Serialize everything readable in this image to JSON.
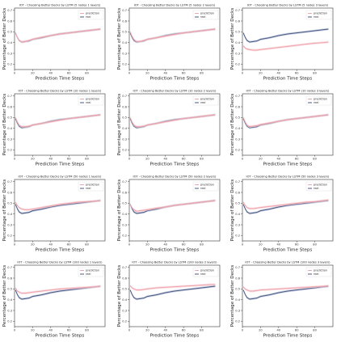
{
  "figure": {
    "x_label": "Prediction Time Steps",
    "y_label": "Percentage of Better Decks",
    "legend_labels": [
      "prediction",
      "real"
    ],
    "colors": {
      "prediction": "#f0a3ad",
      "prediction_band": "#f7c9cf",
      "real": "#4a5a86",
      "real_band": "#a9b2cc"
    }
  },
  "chart_data": [
    {
      "type": "line",
      "title": "IOT - Choosing Better Decks by LSTM (5 nodes 1 layers)",
      "xlim": [
        0,
        100
      ],
      "ylim": [
        0.15,
        0.72
      ],
      "xticks": [
        0,
        20,
        40,
        60,
        80
      ],
      "yticks": [
        0.2,
        0.3,
        0.4,
        0.5,
        0.6,
        0.7
      ],
      "x": [
        1,
        3,
        5,
        8,
        12,
        16,
        20,
        30,
        40,
        50,
        60,
        70,
        80,
        90,
        95
      ],
      "series": [
        {
          "name": "prediction",
          "values": [
            0.49,
            0.45,
            0.42,
            0.405,
            0.41,
            0.42,
            0.43,
            0.45,
            0.465,
            0.48,
            0.49,
            0.5,
            0.51,
            0.52,
            0.525
          ]
        },
        {
          "name": "real",
          "values": [
            0.49,
            0.45,
            0.42,
            0.405,
            0.41,
            0.415,
            0.43,
            0.445,
            0.465,
            0.48,
            0.49,
            0.5,
            0.51,
            0.52,
            0.525
          ]
        }
      ],
      "legend": "top-right"
    },
    {
      "type": "line",
      "title": "IOT - Choosing Better Decks by LSTM (5 nodes 2 layers)",
      "xlim": [
        0,
        100
      ],
      "ylim": [
        0.15,
        0.72
      ],
      "xticks": [
        0,
        20,
        40,
        60,
        80
      ],
      "yticks": [
        0.2,
        0.3,
        0.4,
        0.5,
        0.6,
        0.7
      ],
      "x": [
        1,
        3,
        5,
        8,
        12,
        16,
        20,
        30,
        40,
        50,
        60,
        70,
        80,
        90,
        95
      ],
      "series": [
        {
          "name": "prediction",
          "values": [
            0.5,
            0.46,
            0.43,
            0.41,
            0.41,
            0.42,
            0.43,
            0.445,
            0.46,
            0.475,
            0.49,
            0.5,
            0.51,
            0.52,
            0.525
          ]
        },
        {
          "name": "real",
          "values": [
            0.49,
            0.45,
            0.42,
            0.405,
            0.41,
            0.415,
            0.43,
            0.445,
            0.465,
            0.48,
            0.49,
            0.5,
            0.51,
            0.52,
            0.525
          ]
        }
      ],
      "legend": "top-right"
    },
    {
      "type": "line",
      "title": "IOT - Choosing Better Decks by LSTM (5 nodes 3 layers)",
      "xlim": [
        0,
        100
      ],
      "ylim": [
        0.15,
        0.72
      ],
      "xticks": [
        0,
        20,
        40,
        60,
        80
      ],
      "yticks": [
        0.2,
        0.3,
        0.4,
        0.5,
        0.6,
        0.7
      ],
      "x": [
        1,
        3,
        5,
        8,
        12,
        16,
        20,
        30,
        40,
        50,
        60,
        70,
        80,
        90,
        95
      ],
      "series": [
        {
          "name": "prediction",
          "values": [
            0.37,
            0.35,
            0.34,
            0.335,
            0.33,
            0.33,
            0.335,
            0.345,
            0.355,
            0.365,
            0.375,
            0.385,
            0.395,
            0.4,
            0.405
          ]
        },
        {
          "name": "real",
          "values": [
            0.49,
            0.45,
            0.42,
            0.405,
            0.41,
            0.415,
            0.43,
            0.445,
            0.465,
            0.48,
            0.49,
            0.5,
            0.51,
            0.52,
            0.525
          ]
        }
      ],
      "legend": "top-right"
    },
    {
      "type": "line",
      "title": "IOT - Choosing Better Decks by LSTM (10 nodes 1 layers)",
      "xlim": [
        0,
        100
      ],
      "ylim": [
        0.15,
        0.72
      ],
      "xticks": [
        0,
        20,
        40,
        60,
        80
      ],
      "yticks": [
        0.2,
        0.3,
        0.4,
        0.5,
        0.6,
        0.7
      ],
      "x": [
        1,
        3,
        5,
        8,
        12,
        16,
        20,
        30,
        40,
        50,
        60,
        70,
        80,
        90,
        95
      ],
      "series": [
        {
          "name": "prediction",
          "values": [
            0.5,
            0.46,
            0.43,
            0.415,
            0.415,
            0.42,
            0.43,
            0.445,
            0.46,
            0.475,
            0.49,
            0.5,
            0.51,
            0.52,
            0.525
          ]
        },
        {
          "name": "real",
          "values": [
            0.49,
            0.45,
            0.42,
            0.405,
            0.41,
            0.415,
            0.43,
            0.445,
            0.465,
            0.48,
            0.49,
            0.5,
            0.51,
            0.52,
            0.525
          ]
        }
      ],
      "legend": "top-right"
    },
    {
      "type": "line",
      "title": "IOT - Choosing Better Decks by LSTM (10 nodes 2 layers)",
      "xlim": [
        0,
        100
      ],
      "ylim": [
        0.15,
        0.72
      ],
      "xticks": [
        0,
        20,
        40,
        60,
        80
      ],
      "yticks": [
        0.2,
        0.3,
        0.4,
        0.5,
        0.6,
        0.7
      ],
      "x": [
        1,
        3,
        5,
        8,
        12,
        16,
        20,
        30,
        40,
        50,
        60,
        70,
        80,
        90,
        95
      ],
      "series": [
        {
          "name": "prediction",
          "values": [
            0.5,
            0.46,
            0.43,
            0.415,
            0.415,
            0.42,
            0.43,
            0.445,
            0.46,
            0.475,
            0.49,
            0.5,
            0.51,
            0.52,
            0.525
          ]
        },
        {
          "name": "real",
          "values": [
            0.49,
            0.45,
            0.42,
            0.405,
            0.41,
            0.415,
            0.43,
            0.445,
            0.465,
            0.48,
            0.49,
            0.5,
            0.51,
            0.52,
            0.525
          ]
        }
      ],
      "legend": "top-right"
    },
    {
      "type": "line",
      "title": "IOT - Choosing Better Decks by LSTM (10 nodes 3 layers)",
      "xlim": [
        0,
        100
      ],
      "ylim": [
        0.15,
        0.72
      ],
      "xticks": [
        0,
        20,
        40,
        60,
        80
      ],
      "yticks": [
        0.2,
        0.3,
        0.4,
        0.5,
        0.6,
        0.7
      ],
      "x": [
        1,
        3,
        5,
        8,
        12,
        16,
        20,
        30,
        40,
        50,
        60,
        70,
        80,
        90,
        95
      ],
      "series": [
        {
          "name": "prediction",
          "values": [
            0.5,
            0.46,
            0.43,
            0.415,
            0.42,
            0.425,
            0.435,
            0.45,
            0.465,
            0.48,
            0.49,
            0.5,
            0.51,
            0.52,
            0.525
          ]
        },
        {
          "name": "real",
          "values": [
            0.49,
            0.45,
            0.42,
            0.405,
            0.41,
            0.415,
            0.43,
            0.445,
            0.465,
            0.48,
            0.49,
            0.5,
            0.51,
            0.52,
            0.525
          ]
        }
      ],
      "legend": "top-right"
    },
    {
      "type": "line",
      "title": "IOT - Choosing Better Decks by LSTM (50 nodes 1 layers)",
      "xlim": [
        0,
        100
      ],
      "ylim": [
        0.15,
        0.72
      ],
      "xticks": [
        0,
        20,
        40,
        60,
        80
      ],
      "yticks": [
        0.2,
        0.3,
        0.4,
        0.5,
        0.6,
        0.7
      ],
      "x": [
        1,
        3,
        5,
        8,
        12,
        16,
        20,
        30,
        40,
        50,
        60,
        70,
        80,
        90,
        95
      ],
      "series": [
        {
          "name": "prediction",
          "values": [
            0.51,
            0.48,
            0.46,
            0.445,
            0.44,
            0.44,
            0.445,
            0.46,
            0.475,
            0.49,
            0.5,
            0.51,
            0.515,
            0.52,
            0.525
          ]
        },
        {
          "name": "real",
          "values": [
            0.49,
            0.45,
            0.42,
            0.405,
            0.41,
            0.415,
            0.43,
            0.445,
            0.465,
            0.48,
            0.49,
            0.5,
            0.51,
            0.52,
            0.525
          ]
        }
      ],
      "legend": "top-right"
    },
    {
      "type": "line",
      "title": "IOT - Choosing Better Decks by LSTM (50 nodes 2 layers)",
      "xlim": [
        0,
        100
      ],
      "ylim": [
        0.15,
        0.72
      ],
      "xticks": [
        0,
        20,
        40,
        60,
        80
      ],
      "yticks": [
        0.2,
        0.3,
        0.4,
        0.5,
        0.6,
        0.7
      ],
      "x": [
        1,
        3,
        5,
        8,
        12,
        16,
        20,
        30,
        40,
        50,
        60,
        70,
        80,
        90,
        95
      ],
      "series": [
        {
          "name": "prediction",
          "values": [
            0.49,
            0.46,
            0.44,
            0.425,
            0.43,
            0.435,
            0.44,
            0.455,
            0.465,
            0.48,
            0.49,
            0.5,
            0.51,
            0.52,
            0.525
          ]
        },
        {
          "name": "real",
          "values": [
            0.49,
            0.45,
            0.42,
            0.405,
            0.41,
            0.415,
            0.43,
            0.445,
            0.465,
            0.48,
            0.49,
            0.5,
            0.51,
            0.52,
            0.525
          ]
        }
      ],
      "legend": "top-right"
    },
    {
      "type": "line",
      "title": "IOT - Choosing Better Decks by LSTM (50 nodes 3 layers)",
      "xlim": [
        0,
        100
      ],
      "ylim": [
        0.15,
        0.72
      ],
      "xticks": [
        0,
        20,
        40,
        60,
        80
      ],
      "yticks": [
        0.2,
        0.3,
        0.4,
        0.5,
        0.6,
        0.7
      ],
      "x": [
        1,
        3,
        5,
        8,
        12,
        16,
        20,
        30,
        40,
        50,
        60,
        70,
        80,
        90,
        95
      ],
      "series": [
        {
          "name": "prediction",
          "values": [
            0.51,
            0.48,
            0.46,
            0.45,
            0.45,
            0.455,
            0.46,
            0.47,
            0.48,
            0.49,
            0.5,
            0.51,
            0.515,
            0.525,
            0.53
          ]
        },
        {
          "name": "real",
          "values": [
            0.49,
            0.45,
            0.42,
            0.405,
            0.41,
            0.415,
            0.43,
            0.445,
            0.465,
            0.48,
            0.49,
            0.5,
            0.51,
            0.52,
            0.525
          ]
        }
      ],
      "legend": "top-right"
    },
    {
      "type": "line",
      "title": "IOT - Choosing Better Decks by LSTM (100 nodes 1 layers)",
      "xlim": [
        0,
        100
      ],
      "ylim": [
        0.15,
        0.72
      ],
      "xticks": [
        0,
        20,
        40,
        60,
        80
      ],
      "yticks": [
        0.2,
        0.3,
        0.4,
        0.5,
        0.6,
        0.7
      ],
      "x": [
        1,
        3,
        5,
        8,
        12,
        16,
        20,
        30,
        40,
        50,
        60,
        70,
        80,
        90,
        95
      ],
      "series": [
        {
          "name": "prediction",
          "values": [
            0.51,
            0.48,
            0.47,
            0.46,
            0.46,
            0.465,
            0.47,
            0.48,
            0.49,
            0.5,
            0.505,
            0.51,
            0.515,
            0.52,
            0.525
          ]
        },
        {
          "name": "real",
          "values": [
            0.49,
            0.45,
            0.42,
            0.405,
            0.41,
            0.415,
            0.43,
            0.445,
            0.465,
            0.48,
            0.49,
            0.5,
            0.51,
            0.52,
            0.525
          ]
        }
      ],
      "legend": "top-right"
    },
    {
      "type": "line",
      "title": "IOT - Choosing Better Decks by LSTM (100 nodes 2 layers)",
      "xlim": [
        0,
        100
      ],
      "ylim": [
        0.15,
        0.72
      ],
      "xticks": [
        0,
        20,
        40,
        60,
        80
      ],
      "yticks": [
        0.2,
        0.3,
        0.4,
        0.5,
        0.6,
        0.7
      ],
      "x": [
        1,
        3,
        5,
        8,
        12,
        16,
        20,
        30,
        40,
        50,
        60,
        70,
        80,
        90,
        95
      ],
      "series": [
        {
          "name": "prediction",
          "values": [
            0.53,
            0.51,
            0.5,
            0.49,
            0.49,
            0.495,
            0.5,
            0.51,
            0.515,
            0.52,
            0.525,
            0.53,
            0.535,
            0.54,
            0.54
          ]
        },
        {
          "name": "real",
          "values": [
            0.49,
            0.45,
            0.42,
            0.405,
            0.41,
            0.415,
            0.43,
            0.445,
            0.465,
            0.48,
            0.49,
            0.5,
            0.51,
            0.52,
            0.525
          ]
        }
      ],
      "legend": "top-right"
    },
    {
      "type": "line",
      "title": "IOT - Choosing Better Decks by LSTM (100 nodes 3 layers)",
      "xlim": [
        0,
        100
      ],
      "ylim": [
        0.15,
        0.72
      ],
      "xticks": [
        0,
        20,
        40,
        60,
        80
      ],
      "yticks": [
        0.2,
        0.3,
        0.4,
        0.5,
        0.6,
        0.7
      ],
      "x": [
        1,
        3,
        5,
        8,
        12,
        16,
        20,
        30,
        40,
        50,
        60,
        70,
        80,
        90,
        95
      ],
      "series": [
        {
          "name": "prediction",
          "values": [
            0.52,
            0.5,
            0.49,
            0.48,
            0.48,
            0.485,
            0.49,
            0.495,
            0.5,
            0.505,
            0.51,
            0.515,
            0.52,
            0.525,
            0.53
          ]
        },
        {
          "name": "real",
          "values": [
            0.49,
            0.45,
            0.42,
            0.405,
            0.41,
            0.415,
            0.43,
            0.445,
            0.465,
            0.48,
            0.49,
            0.5,
            0.51,
            0.52,
            0.525
          ]
        }
      ],
      "legend": "top-right"
    }
  ]
}
